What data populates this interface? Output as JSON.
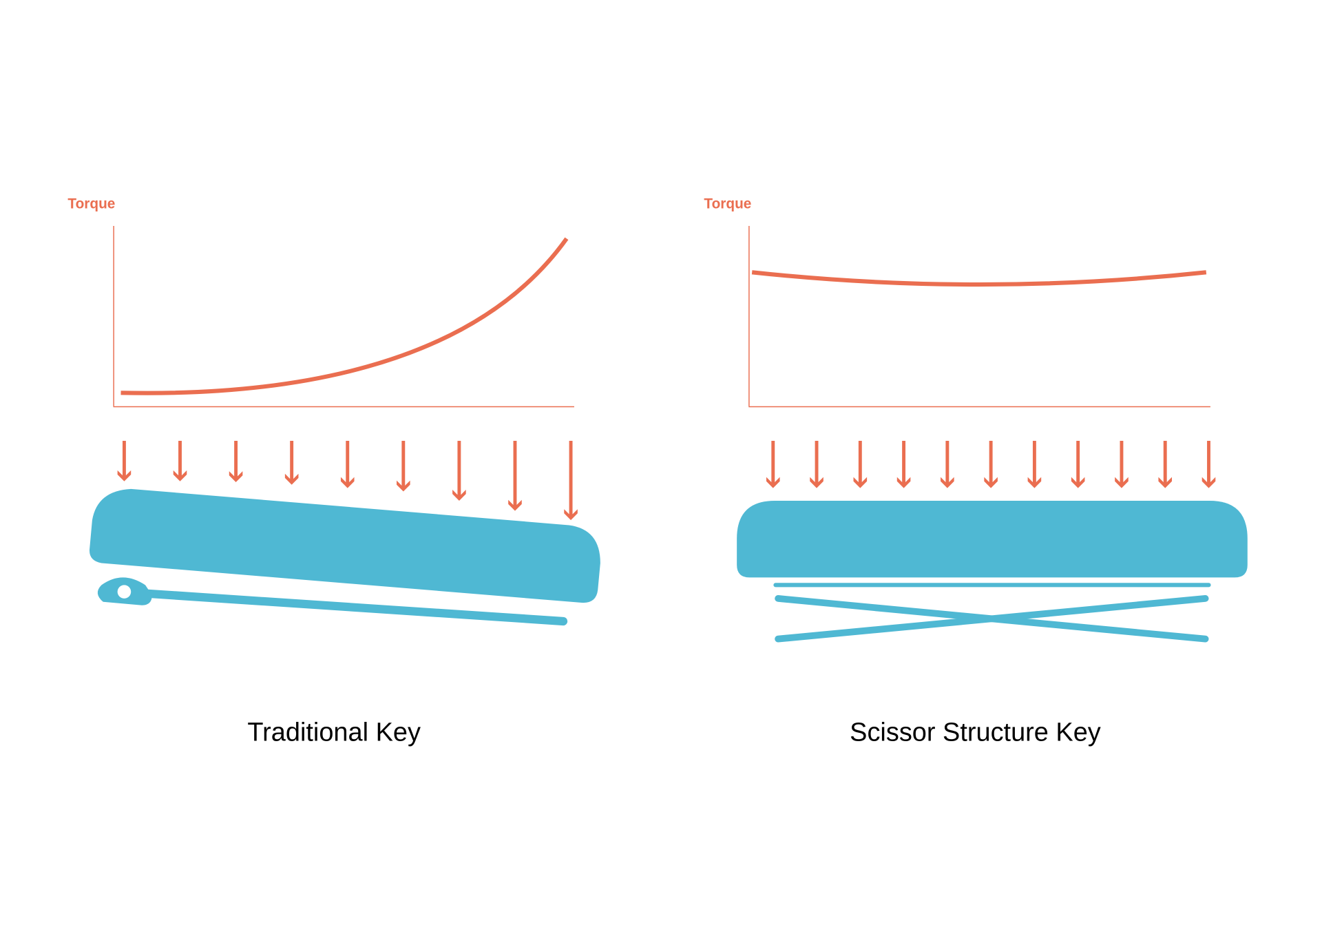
{
  "colors": {
    "force": "#EA6E50",
    "key": "#4FB8D3",
    "background": "#FFFFFF"
  },
  "left_panel": {
    "axis_label": "Torque",
    "caption": "Traditional Key",
    "curve_shape": "rising sharply toward right edge",
    "arrow_count": 9
  },
  "right_panel": {
    "axis_label": "Torque",
    "caption": "Scissor Structure Key",
    "curve_shape": "nearly flat, slight dip in middle",
    "arrow_count": 11
  }
}
